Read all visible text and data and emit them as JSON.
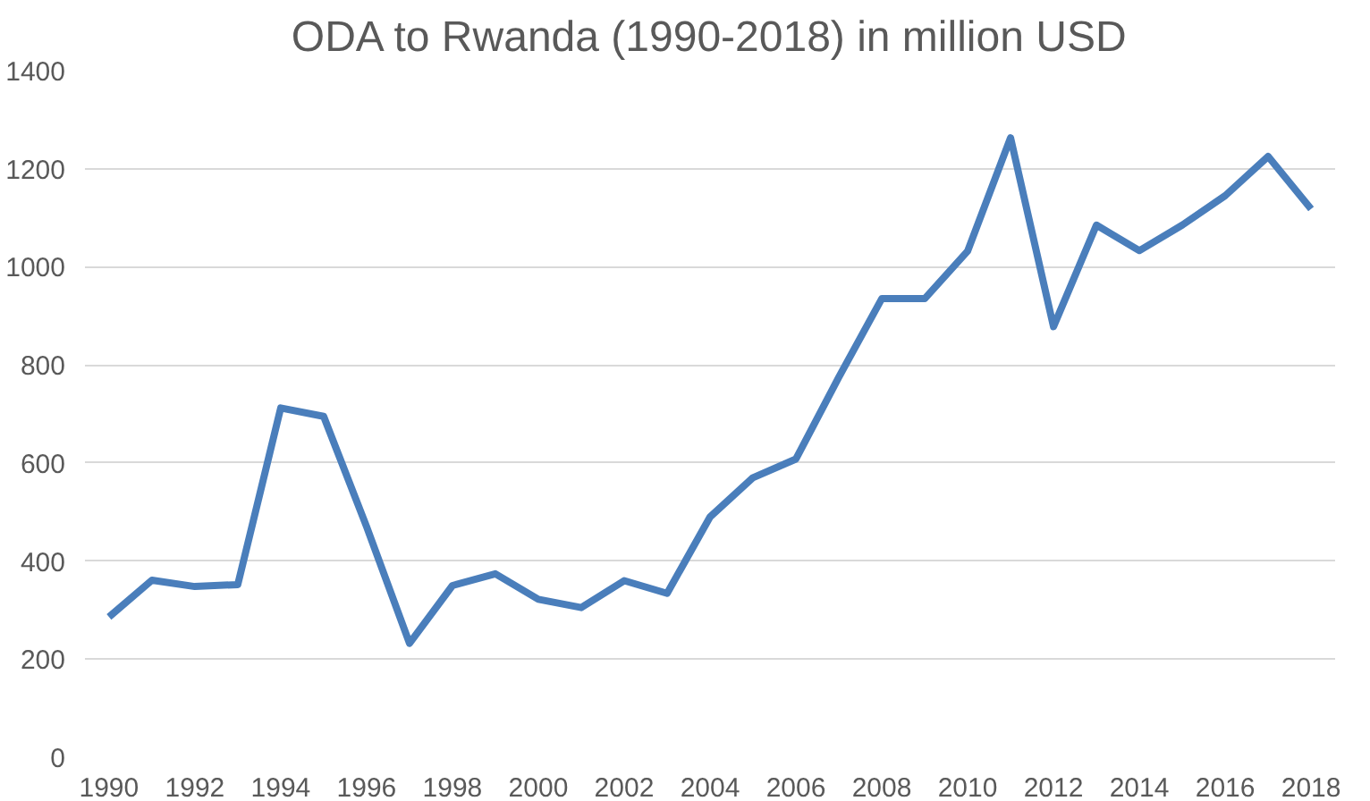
{
  "chart_data": {
    "type": "line",
    "title": "ODA to Rwanda (1990-2018) in million USD",
    "x": [
      1990,
      1991,
      1992,
      1993,
      1994,
      1995,
      1996,
      1997,
      1998,
      1999,
      2000,
      2001,
      2002,
      2003,
      2004,
      2005,
      2006,
      2007,
      2008,
      2009,
      2010,
      2011,
      2012,
      2013,
      2014,
      2015,
      2016,
      2017,
      2018
    ],
    "series": [
      {
        "color": "#4a7ebb",
        "values": [
          286,
          361,
          348,
          352,
          712,
          695,
          470,
          232,
          350,
          374,
          322,
          305,
          360,
          334,
          490,
          570,
          608,
          775,
          935,
          935,
          1032,
          1263,
          878,
          1085,
          1033,
          1085,
          1145,
          1225,
          1118
        ]
      }
    ],
    "xlim": [
      1990,
      2018
    ],
    "xticks": [
      1990,
      1992,
      1994,
      1996,
      1998,
      2000,
      2002,
      2004,
      2006,
      2008,
      2010,
      2012,
      2014,
      2016,
      2018
    ],
    "ylim": [
      0,
      1400
    ],
    "yticks": [
      0,
      200,
      400,
      600,
      800,
      1000,
      1200,
      1400
    ],
    "grid": "y",
    "marker": "none",
    "line_style": "solid"
  }
}
